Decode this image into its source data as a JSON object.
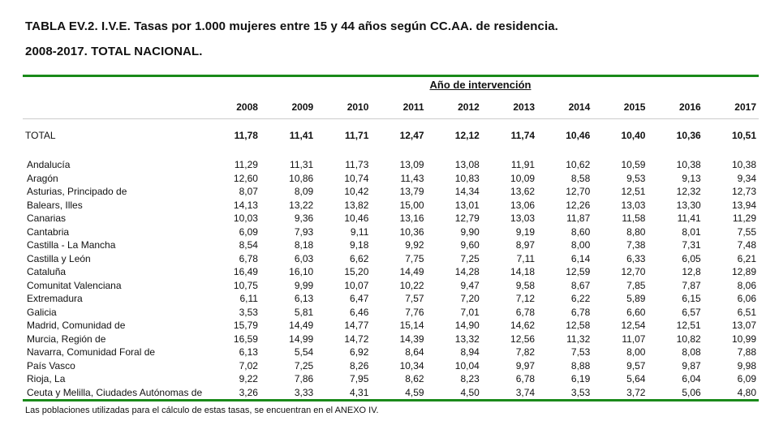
{
  "title_line1": "TABLA EV.2. I.V.E. Tasas por 1.000 mujeres entre 15 y 44 años según CC.AA. de residencia.",
  "title_line2": "2008-2017. TOTAL NACIONAL.",
  "group_header": "Año de intervención",
  "years": [
    "2008",
    "2009",
    "2010",
    "2011",
    "2012",
    "2013",
    "2014",
    "2015",
    "2016",
    "2017"
  ],
  "total": {
    "label": "TOTAL",
    "values": [
      "11,78",
      "11,41",
      "11,71",
      "12,47",
      "12,12",
      "11,74",
      "10,46",
      "10,40",
      "10,36",
      "10,51"
    ]
  },
  "rows": [
    {
      "label": "Andalucía",
      "values": [
        "11,29",
        "11,31",
        "11,73",
        "13,09",
        "13,08",
        "11,91",
        "10,62",
        "10,59",
        "10,38",
        "10,38"
      ]
    },
    {
      "label": "Aragón",
      "values": [
        "12,60",
        "10,86",
        "10,74",
        "11,43",
        "10,83",
        "10,09",
        "8,58",
        "9,53",
        "9,13",
        "9,34"
      ]
    },
    {
      "label": "Asturias, Principado de",
      "values": [
        "8,07",
        "8,09",
        "10,42",
        "13,79",
        "14,34",
        "13,62",
        "12,70",
        "12,51",
        "12,32",
        "12,73"
      ]
    },
    {
      "label": "Balears, Illes",
      "values": [
        "14,13",
        "13,22",
        "13,82",
        "15,00",
        "13,01",
        "13,06",
        "12,26",
        "13,03",
        "13,30",
        "13,94"
      ]
    },
    {
      "label": "Canarias",
      "values": [
        "10,03",
        "9,36",
        "10,46",
        "13,16",
        "12,79",
        "13,03",
        "11,87",
        "11,58",
        "11,41",
        "11,29"
      ]
    },
    {
      "label": "Cantabria",
      "values": [
        "6,09",
        "7,93",
        "9,11",
        "10,36",
        "9,90",
        "9,19",
        "8,60",
        "8,80",
        "8,01",
        "7,55"
      ]
    },
    {
      "label": "Castilla - La Mancha",
      "values": [
        "8,54",
        "8,18",
        "9,18",
        "9,92",
        "9,60",
        "8,97",
        "8,00",
        "7,38",
        "7,31",
        "7,48"
      ]
    },
    {
      "label": "Castilla y León",
      "values": [
        "6,78",
        "6,03",
        "6,62",
        "7,75",
        "7,25",
        "7,11",
        "6,14",
        "6,33",
        "6,05",
        "6,21"
      ]
    },
    {
      "label": "Cataluña",
      "values": [
        "16,49",
        "16,10",
        "15,20",
        "14,49",
        "14,28",
        "14,18",
        "12,59",
        "12,70",
        "12,8",
        "12,89"
      ]
    },
    {
      "label": "Comunitat Valenciana",
      "values": [
        "10,75",
        "9,99",
        "10,07",
        "10,22",
        "9,47",
        "9,58",
        "8,67",
        "7,85",
        "7,87",
        "8,06"
      ]
    },
    {
      "label": "Extremadura",
      "values": [
        "6,11",
        "6,13",
        "6,47",
        "7,57",
        "7,20",
        "7,12",
        "6,22",
        "5,89",
        "6,15",
        "6,06"
      ]
    },
    {
      "label": "Galicia",
      "values": [
        "3,53",
        "5,81",
        "6,46",
        "7,76",
        "7,01",
        "6,78",
        "6,78",
        "6,60",
        "6,57",
        "6,51"
      ]
    },
    {
      "label": "Madrid, Comunidad de",
      "values": [
        "15,79",
        "14,49",
        "14,77",
        "15,14",
        "14,90",
        "14,62",
        "12,58",
        "12,54",
        "12,51",
        "13,07"
      ]
    },
    {
      "label": "Murcia, Región de",
      "values": [
        "16,59",
        "14,99",
        "14,72",
        "14,39",
        "13,32",
        "12,56",
        "11,32",
        "11,07",
        "10,82",
        "10,99"
      ]
    },
    {
      "label": "Navarra, Comunidad Foral de",
      "values": [
        "6,13",
        "5,54",
        "6,92",
        "8,64",
        "8,94",
        "7,82",
        "7,53",
        "8,00",
        "8,08",
        "7,88"
      ]
    },
    {
      "label": "País Vasco",
      "values": [
        "7,02",
        "7,25",
        "8,26",
        "10,34",
        "10,04",
        "9,97",
        "8,88",
        "9,57",
        "9,87",
        "9,98"
      ]
    },
    {
      "label": "Rioja, La",
      "values": [
        "9,22",
        "7,86",
        "7,95",
        "8,62",
        "8,23",
        "6,78",
        "6,19",
        "5,64",
        "6,04",
        "6,09"
      ]
    },
    {
      "label": "Ceuta y Melilla, Ciudades Autónomas de",
      "values": [
        "3,26",
        "3,33",
        "4,31",
        "4,59",
        "4,50",
        "3,74",
        "3,53",
        "3,72",
        "5,06",
        "4,80"
      ]
    }
  ],
  "footnote": "Las poblaciones utilizadas para el cálculo de estas tasas, se encuentran en el ANEXO IV.",
  "colors": {
    "accent_rule": "#1a8a1a"
  }
}
